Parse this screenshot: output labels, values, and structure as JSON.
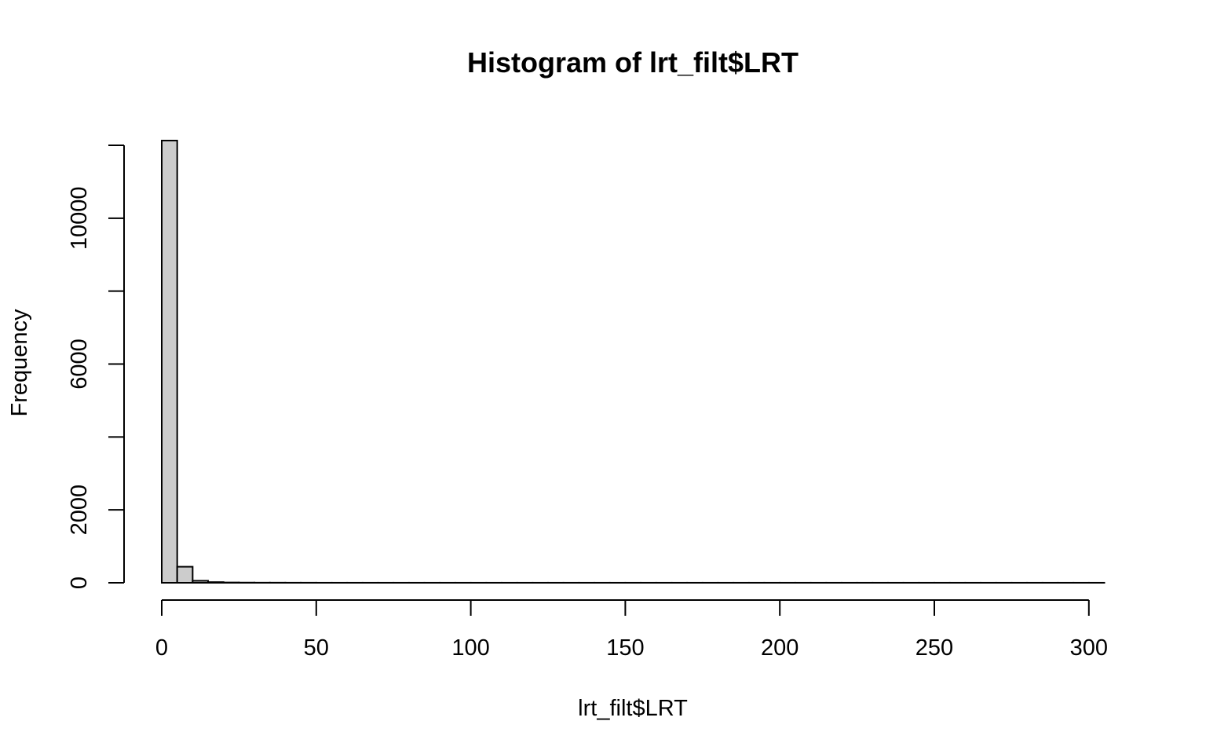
{
  "chart_data": {
    "type": "bar",
    "title": "Histogram of lrt_filt$LRT",
    "xlabel": "lrt_filt$LRT",
    "ylabel": "Frequency",
    "bin_width": 5,
    "bin_start": 0,
    "bin_end": 305,
    "values": [
      12130,
      440,
      55,
      18,
      8,
      5,
      3,
      3,
      2,
      2,
      1,
      1,
      1,
      1,
      1,
      1,
      1,
      1,
      1,
      1,
      1,
      1,
      1,
      1,
      1,
      1,
      1,
      1,
      1,
      1,
      1,
      1,
      1,
      1,
      1,
      1,
      1,
      1,
      1,
      1,
      1,
      1,
      1,
      1,
      1,
      1,
      1,
      1,
      1,
      1,
      1,
      1,
      1,
      1,
      1,
      1,
      1,
      1,
      1,
      1,
      1
    ],
    "xlim": [
      0,
      300
    ],
    "ylim": [
      0,
      12000
    ],
    "x_ticks": [
      0,
      50,
      100,
      150,
      200,
      250,
      300
    ],
    "y_ticks": [
      0,
      2000,
      4000,
      6000,
      8000,
      10000,
      12000
    ],
    "y_tick_labels": [
      "0",
      "2000",
      "6000",
      "10000"
    ],
    "grid": false,
    "bar_color": "#cccccc"
  }
}
